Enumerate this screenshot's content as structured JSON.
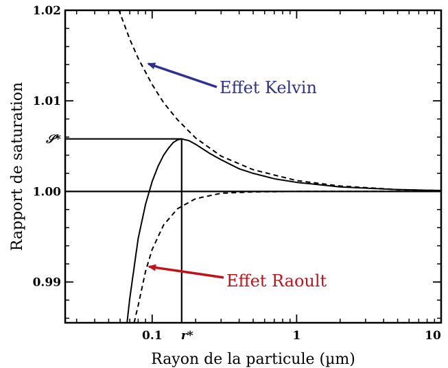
{
  "chart_data": {
    "type": "line",
    "xlabel": "Rayon de la particule (µm)",
    "ylabel": "Rapport de saturation",
    "x_scale": "log",
    "xlim": [
      0.025,
      10
    ],
    "ylim": [
      0.9855,
      1.02
    ],
    "x_ticks": [
      {
        "value": 0.1,
        "label": "0.1"
      },
      {
        "value": 1,
        "label": "1"
      },
      {
        "value": 10,
        "label": "10"
      }
    ],
    "y_ticks": [
      {
        "value": 0.99,
        "label": "0.99"
      },
      {
        "value": 1.0,
        "label": "1.00"
      },
      {
        "value": 1.01,
        "label": "1.01"
      },
      {
        "value": 1.02,
        "label": "1.02"
      }
    ],
    "grid": false,
    "series": [
      {
        "style": "dashed",
        "x": [
          0.058,
          0.07,
          0.08,
          0.1,
          0.12,
          0.15,
          0.2,
          0.3,
          0.5,
          1,
          2,
          5,
          10
        ],
        "y": [
          1.0203,
          1.0168,
          1.0147,
          1.0118,
          1.0098,
          1.0079,
          1.0059,
          1.0039,
          1.0024,
          1.0012,
          1.0006,
          1.0002,
          1.0001
        ]
      },
      {
        "style": "dashed",
        "x": [
          0.075,
          0.08,
          0.09,
          0.1,
          0.12,
          0.15,
          0.2,
          0.3,
          0.5,
          1,
          2,
          5,
          10
        ],
        "y": [
          0.9855,
          0.9874,
          0.9912,
          0.9936,
          0.9963,
          0.9981,
          0.9992,
          0.9998,
          0.99995,
          1.0,
          1.0,
          1.0,
          1.0
        ]
      },
      {
        "style": "solid",
        "x": [
          0.067,
          0.07,
          0.08,
          0.09,
          0.1,
          0.11,
          0.12,
          0.13,
          0.14,
          0.15,
          0.16,
          0.18,
          0.2,
          0.25,
          0.3,
          0.4,
          0.5,
          0.7,
          1,
          2,
          5,
          10
        ],
        "y": [
          0.9855,
          0.9882,
          0.9948,
          0.9986,
          1.0011,
          1.0028,
          1.004,
          1.0048,
          1.0054,
          1.0057,
          1.0058,
          1.0056,
          1.0052,
          1.0042,
          1.0035,
          1.0025,
          1.002,
          1.0014,
          1.001,
          1.0005,
          1.0002,
          1.0001
        ]
      }
    ],
    "critical_point": {
      "x": 0.16,
      "y": 1.0058,
      "x_label": "r*",
      "y_label": "𝒮*"
    },
    "annotations": [
      {
        "text": "Effet Kelvin",
        "color": "#2e3192",
        "arrow_to_x": 0.094,
        "arrow_to_y": 1.0141
      },
      {
        "text": "Effet Raoult",
        "color": "#c1121a",
        "arrow_to_x": 0.095,
        "arrow_to_y": 0.9917
      }
    ]
  }
}
